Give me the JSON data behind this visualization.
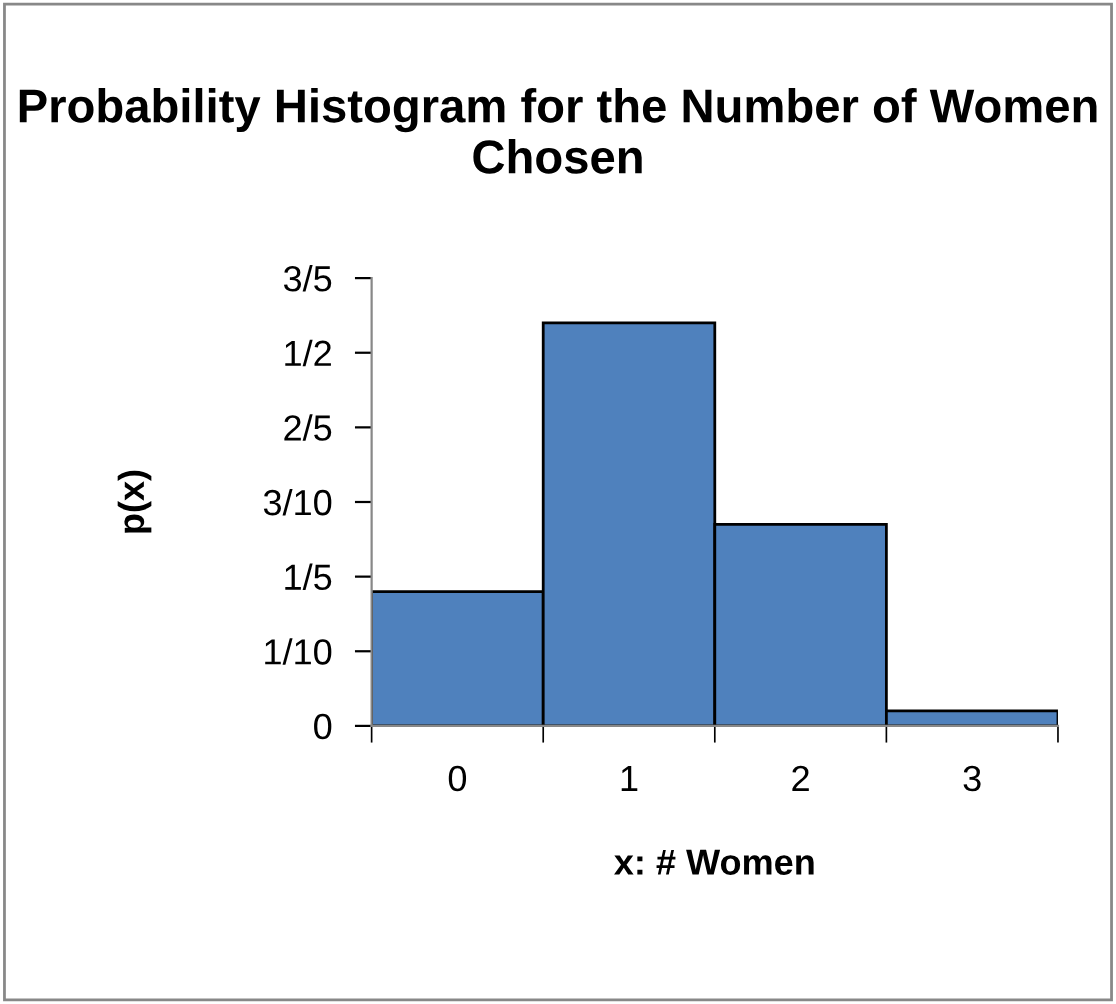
{
  "chart_data": {
    "type": "bar",
    "title": "Probability Histogram for the Number of Women Chosen",
    "xlabel": "x: # Women",
    "ylabel": "p(x)",
    "categories": [
      "0",
      "1",
      "2",
      "3"
    ],
    "values": [
      0.18,
      0.54,
      0.27,
      0.02
    ],
    "color": "#4f81bd",
    "ylim": [
      0,
      0.6
    ],
    "yticks": [
      0,
      {
        "value": 0.1,
        "label": "1/10"
      },
      {
        "value": 0.2,
        "label": "1/5"
      },
      {
        "value": 0.3,
        "label": "3/10"
      },
      {
        "value": 0.4,
        "label": "2/5"
      },
      {
        "value": 0.5,
        "label": "1/2"
      },
      {
        "value": 0.6,
        "label": "3/5"
      }
    ],
    "grid": false,
    "legend": false
  }
}
